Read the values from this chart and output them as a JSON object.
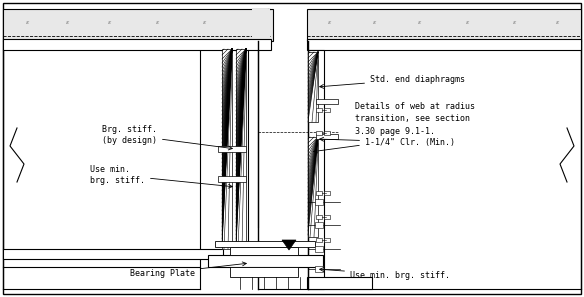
{
  "annotations": {
    "brg_stiff": "Brg. stiff.\n(by design)",
    "use_min_left": "Use min.\nbrg. stiff.",
    "bearing_plate": "Bearing Plate",
    "std_end_diaphragms": "Std. end diaphragms",
    "details_web": "Details of web at radius\ntransition, see section\n3.30 page 9.1-1.",
    "clearance": "1-1/4\" Clr. (Min.)",
    "use_min_right": "Use min. brg. stiff."
  },
  "rebar_left": [
    28,
    68,
    110,
    158,
    205
  ],
  "rebar_right": [
    330,
    375,
    420,
    468,
    515,
    558
  ]
}
